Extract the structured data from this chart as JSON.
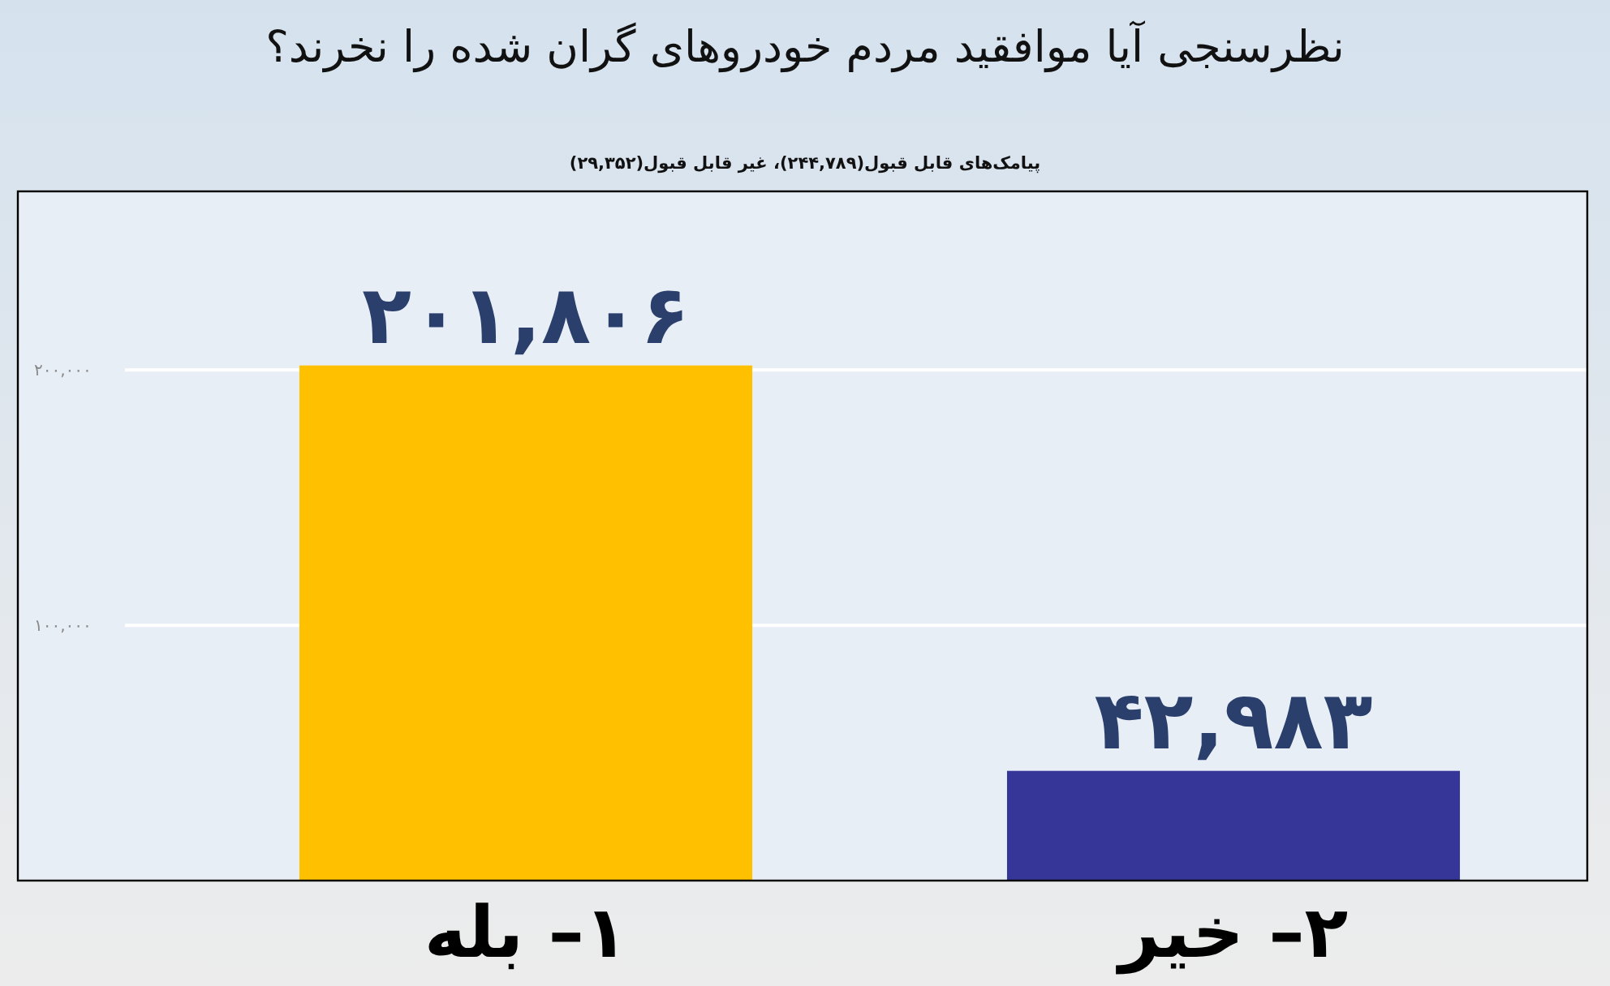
{
  "chart_data": {
    "type": "bar",
    "title": "نظرسنجی آیا موافقید مردم خودروهای گران شده را نخرند؟",
    "subtitle": "پیامک‌های قابل قبول(۲۴۴,۷۸۹)، غیر قابل قبول(۲۹,۳۵۲)",
    "categories": [
      "۱– بله",
      "۲– خیر"
    ],
    "values": [
      201806,
      42983
    ],
    "colors": [
      "#ffc000",
      "#363699"
    ],
    "value_labels": [
      "۲۰۱,۸۰۶",
      "۴۲,۹۸۳"
    ],
    "ylim": [
      0,
      270000
    ],
    "yticks": [
      {
        "value": 100000,
        "label": "۱۰۰,۰۰۰"
      },
      {
        "value": 200000,
        "label": "۲۰۰,۰۰۰"
      }
    ],
    "grid": "y"
  }
}
